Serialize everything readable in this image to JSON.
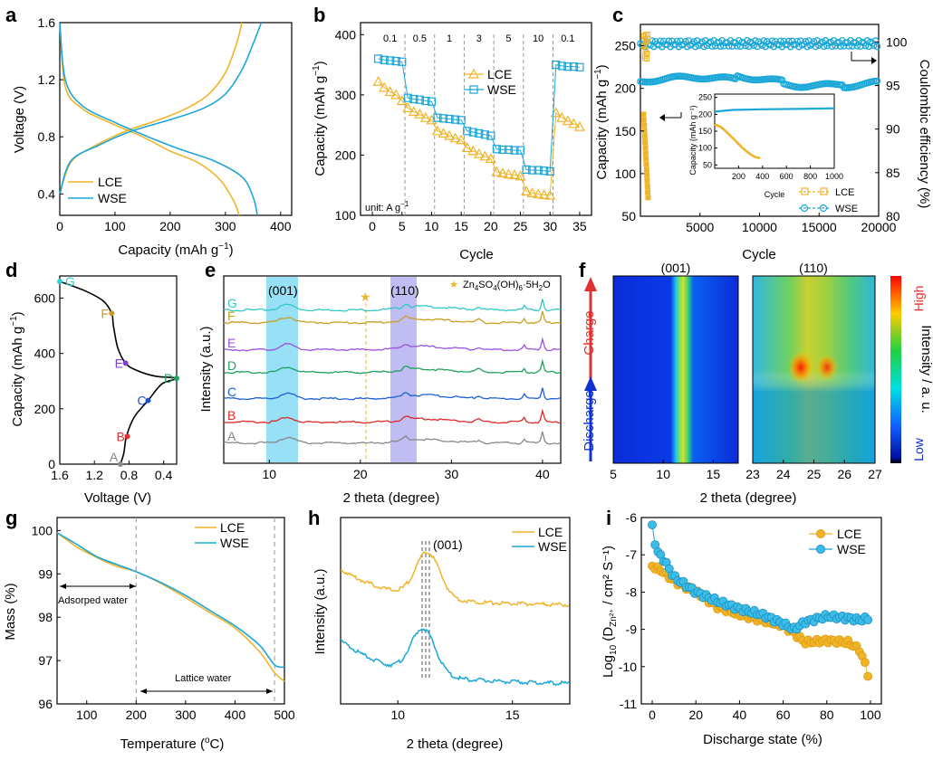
{
  "colors": {
    "lce": "#f0b429",
    "wse": "#1aa7d8",
    "cyan_band": "#5fd0f0",
    "purple_band": "#a9a7ee",
    "star": "#f0b429"
  },
  "panels": {
    "a": {
      "letter": "a",
      "xlabel": "Capacity (mAh g",
      "xlabel_sup": "−1",
      "xlabel_end": ")",
      "ylabel": "Voltage (V)",
      "xticks": [
        "0",
        "100",
        "200",
        "300",
        "400"
      ],
      "yticks": [
        "0.4",
        "0.8",
        "1.2",
        "1.6"
      ],
      "legend": [
        "LCE",
        "WSE"
      ]
    },
    "b": {
      "letter": "b",
      "xlabel": "Cycle",
      "ylabel": "Capacity (mAh g",
      "ylabel_sup": "−1",
      "ylabel_end": ")",
      "xticks": [
        "0",
        "5",
        "10",
        "15",
        "20",
        "25",
        "30",
        "35"
      ],
      "yticks": [
        "100",
        "200",
        "300",
        "400"
      ],
      "rates": [
        "0.1",
        "0.5",
        "1",
        "3",
        "5",
        "10",
        "0.1"
      ],
      "unit_note": "unit: A g",
      "unit_sup": "−1",
      "legend": [
        "LCE",
        "WSE"
      ]
    },
    "c": {
      "letter": "c",
      "xlabel": "Cycle",
      "ylabel": "Capacity (mAh g",
      "ylabel_sup": "−1",
      "ylabel_end": ")",
      "ylabel_right": "Coulombic efficiency (%)",
      "xticks": [
        "5000",
        "10000",
        "15000",
        "20000"
      ],
      "yticks": [
        "50",
        "100",
        "150",
        "200",
        "250"
      ],
      "yticks_right": [
        "80",
        "85",
        "90",
        "95",
        "100"
      ],
      "inset": {
        "xlabel": "Cycle",
        "ylabel": "Capacity (mAh g⁻¹)",
        "xticks": [
          "200",
          "400",
          "600",
          "800",
          "1000"
        ],
        "yticks": [
          "50",
          "100",
          "150",
          "200",
          "250"
        ]
      },
      "legend": [
        "LCE",
        "WSE"
      ]
    },
    "d": {
      "letter": "d",
      "xlabel": "Voltage (V)",
      "ylabel": "Capacity (mAh g",
      "ylabel_sup": "−1",
      "ylabel_end": ")",
      "xticks": [
        "1.6",
        "1.2",
        "0.8",
        "0.4"
      ],
      "yticks": [
        "0",
        "200",
        "400",
        "600"
      ],
      "points": [
        {
          "label": "A",
          "color": "#888888"
        },
        {
          "label": "B",
          "color": "#e03030"
        },
        {
          "label": "C",
          "color": "#2050d0"
        },
        {
          "label": "D",
          "color": "#20a060"
        },
        {
          "label": "E",
          "color": "#8040d0"
        },
        {
          "label": "F",
          "color": "#c89a20"
        },
        {
          "label": "G",
          "color": "#30d0d0"
        }
      ]
    },
    "e": {
      "letter": "e",
      "xlabel": "2 theta (degree)",
      "ylabel": "Intensity (a.u.)",
      "xticks": [
        "10",
        "20",
        "30",
        "40"
      ],
      "peak1": "(001)",
      "peak2": "(110)",
      "legend_text": "Zn",
      "legend_sub1": "4",
      "legend_mid": "SO",
      "legend_sub2": "4",
      "legend_mid2": "(OH)",
      "legend_sub3": "6",
      "legend_end": "·5H",
      "legend_sub4": "2",
      "legend_end2": "O",
      "curves": [
        {
          "label": "G",
          "color": "#30c8c8"
        },
        {
          "label": "F",
          "color": "#c8a020"
        },
        {
          "label": "E",
          "color": "#9b50e0"
        },
        {
          "label": "D",
          "color": "#20a060"
        },
        {
          "label": "C",
          "color": "#1e5fd8"
        },
        {
          "label": "B",
          "color": "#e02828"
        },
        {
          "label": "A",
          "color": "#888888"
        }
      ]
    },
    "f": {
      "letter": "f",
      "title1": "(001)",
      "title2": "(110)",
      "xticks1": [
        "5",
        "10",
        "15"
      ],
      "xticks2": [
        "23",
        "24",
        "25",
        "26",
        "27"
      ],
      "xlabel": "2 theta (degree)",
      "charge": "Charge",
      "discharge": "Discharge",
      "colorbar_label": "Intensity / a. u.",
      "high": "High",
      "low": "Low"
    },
    "g": {
      "letter": "g",
      "xlabel": "Temperature (",
      "xlabel_sup": "o",
      "xlabel_end": "C)",
      "ylabel": "Mass (%)",
      "xticks": [
        "100",
        "200",
        "300",
        "400",
        "500"
      ],
      "yticks": [
        "96",
        "97",
        "98",
        "99",
        "100"
      ],
      "adsorbed": "Adsorped water",
      "lattice": "Lattice water",
      "legend": [
        "LCE",
        "WSE"
      ]
    },
    "h": {
      "letter": "h",
      "xlabel": "2 theta (degree)",
      "ylabel": "Intensity (a.u.)",
      "xticks": [
        "10",
        "15"
      ],
      "peak": "(001)",
      "legend": [
        "LCE",
        "WSE"
      ]
    },
    "i": {
      "letter": "i",
      "xlabel": "Discharge state (%)",
      "ylabel_pre": "Log",
      "ylabel_sub": "10",
      "ylabel_mid": " (D",
      "ylabel_zn": "Zn²⁺",
      "ylabel_end": " / cm² S⁻¹)",
      "xticks": [
        "0",
        "20",
        "40",
        "60",
        "80",
        "100"
      ],
      "yticks": [
        "-11",
        "-10",
        "-9",
        "-8",
        "-7",
        "-6"
      ],
      "legend": [
        "LCE",
        "WSE"
      ]
    }
  },
  "chart_data": [
    {
      "type": "line",
      "panel": "a",
      "xlabel": "Capacity (mAh g−1)",
      "ylabel": "Voltage (V)",
      "xlim": [
        0,
        420
      ],
      "ylim": [
        0.25,
        1.6
      ],
      "series": [
        {
          "name": "LCE",
          "charge": [
            [
              0,
              0.4
            ],
            [
              20,
              0.62
            ],
            [
              60,
              0.73
            ],
            [
              120,
              0.84
            ],
            [
              180,
              0.92
            ],
            [
              230,
              1.0
            ],
            [
              270,
              1.1
            ],
            [
              300,
              1.25
            ],
            [
              320,
              1.45
            ],
            [
              330,
              1.6
            ]
          ],
          "discharge": [
            [
              0,
              1.6
            ],
            [
              10,
              1.15
            ],
            [
              40,
              1.0
            ],
            [
              90,
              0.9
            ],
            [
              150,
              0.8
            ],
            [
              200,
              0.7
            ],
            [
              250,
              0.62
            ],
            [
              290,
              0.5
            ],
            [
              315,
              0.35
            ],
            [
              325,
              0.25
            ]
          ]
        },
        {
          "name": "WSE",
          "charge": [
            [
              0,
              0.4
            ],
            [
              20,
              0.63
            ],
            [
              70,
              0.74
            ],
            [
              130,
              0.84
            ],
            [
              200,
              0.92
            ],
            [
              260,
              1.0
            ],
            [
              300,
              1.1
            ],
            [
              330,
              1.27
            ],
            [
              350,
              1.45
            ],
            [
              365,
              1.6
            ]
          ],
          "discharge": [
            [
              0,
              1.6
            ],
            [
              10,
              1.2
            ],
            [
              40,
              1.02
            ],
            [
              100,
              0.9
            ],
            [
              160,
              0.8
            ],
            [
              220,
              0.71
            ],
            [
              280,
              0.63
            ],
            [
              330,
              0.52
            ],
            [
              350,
              0.38
            ],
            [
              358,
              0.25
            ]
          ]
        }
      ]
    },
    {
      "type": "scatter",
      "panel": "b",
      "xlabel": "Cycle",
      "ylabel": "Capacity (mAh g−1)",
      "xlim": [
        -2,
        37
      ],
      "ylim": [
        100,
        420
      ],
      "series": [
        {
          "name": "LCE",
          "x": [
            1,
            2,
            3,
            4,
            5,
            6,
            7,
            8,
            9,
            10,
            11,
            12,
            13,
            14,
            15,
            16,
            17,
            18,
            19,
            20,
            21,
            22,
            23,
            24,
            25,
            26,
            27,
            28,
            29,
            30,
            31,
            32,
            33,
            34,
            35
          ],
          "values": [
            322,
            312,
            305,
            300,
            290,
            278,
            272,
            268,
            262,
            258,
            240,
            236,
            232,
            228,
            225,
            212,
            207,
            202,
            198,
            194,
            172,
            170,
            168,
            167,
            165,
            140,
            137,
            135,
            134,
            133,
            270,
            262,
            257,
            252,
            247
          ]
        },
        {
          "name": "WSE",
          "x": [
            1,
            2,
            3,
            4,
            5,
            6,
            7,
            8,
            9,
            10,
            11,
            12,
            13,
            14,
            15,
            16,
            17,
            18,
            19,
            20,
            21,
            22,
            23,
            24,
            25,
            26,
            27,
            28,
            29,
            30,
            31,
            32,
            33,
            34,
            35
          ],
          "values": [
            360,
            358,
            357,
            356,
            355,
            295,
            293,
            292,
            290,
            289,
            262,
            261,
            260,
            259,
            258,
            240,
            238,
            236,
            234,
            232,
            210,
            209,
            209,
            208,
            208,
            176,
            175,
            175,
            174,
            173,
            350,
            348,
            347,
            347,
            346
          ]
        }
      ]
    },
    {
      "type": "line",
      "panel": "c",
      "xlabel": "Cycle",
      "ylabel": "Capacity (mAh g−1)",
      "xlim": [
        0,
        20000
      ],
      "ylim": [
        50,
        275
      ],
      "series": [
        {
          "name": "LCE",
          "x": [
            1,
            100,
            200,
            300,
            400
          ],
          "values": [
            170,
            140,
            110,
            85,
            70
          ]
        },
        {
          "name": "WSE",
          "x": [
            1,
            2000,
            5000,
            8000,
            10000,
            13000,
            16000,
            20000
          ],
          "values": [
            208,
            205,
            209,
            212,
            215,
            212,
            210,
            206
          ]
        }
      ],
      "coulombic_efficiency_ylim": [
        80,
        102
      ],
      "coulombic_efficiency": {
        "LCE": 99.5,
        "WSE": 99.8
      }
    },
    {
      "type": "line",
      "panel": "d",
      "xlabel": "Voltage (V)",
      "ylabel": "Capacity (mAh g−1)",
      "xlim": [
        1.6,
        0.25
      ],
      "ylim": [
        0,
        680
      ],
      "points": [
        {
          "label": "A",
          "x": 0.9,
          "y": 0
        },
        {
          "label": "B",
          "x": 0.82,
          "y": 100
        },
        {
          "label": "C",
          "x": 0.58,
          "y": 230
        },
        {
          "label": "D",
          "x": 0.25,
          "y": 310
        },
        {
          "label": "E",
          "x": 0.84,
          "y": 365
        },
        {
          "label": "F",
          "x": 1.0,
          "y": 545
        },
        {
          "label": "G",
          "x": 1.6,
          "y": 660
        }
      ]
    },
    {
      "type": "line",
      "panel": "e",
      "xlabel": "2 theta (degree)",
      "ylabel": "Intensity (a.u.)",
      "xlim": [
        5,
        42
      ],
      "peaks": {
        "001": [
          10,
          13.5
        ],
        "110": [
          23.5,
          26.5
        ],
        "Zn4SO4(OH)6·5H2O": 21
      }
    },
    {
      "type": "heatmap",
      "panel": "f",
      "xlim_left": [
        5,
        17
      ],
      "xlim_right": [
        23,
        27
      ]
    },
    {
      "type": "line",
      "panel": "g",
      "xlabel": "Temperature (oC)",
      "ylabel": "Mass (%)",
      "xlim": [
        40,
        500
      ],
      "ylim": [
        96.0,
        100.3
      ],
      "series": [
        {
          "name": "LCE",
          "x": [
            40,
            80,
            120,
            160,
            200,
            250,
            300,
            350,
            400,
            450,
            480,
            500
          ],
          "values": [
            99.95,
            99.62,
            99.38,
            99.18,
            99.05,
            98.78,
            98.45,
            98.1,
            97.75,
            97.2,
            96.72,
            96.52
          ]
        },
        {
          "name": "WSE",
          "x": [
            40,
            80,
            120,
            160,
            200,
            250,
            300,
            350,
            400,
            450,
            480,
            500
          ],
          "values": [
            99.95,
            99.68,
            99.4,
            99.22,
            99.05,
            98.8,
            98.5,
            98.15,
            97.8,
            97.35,
            96.9,
            96.85
          ]
        }
      ]
    },
    {
      "type": "line",
      "panel": "h",
      "xlabel": "2 theta (degree)",
      "ylabel": "Intensity (a.u.)",
      "xlim": [
        7.5,
        17.5
      ],
      "series": [
        {
          "name": "LCE",
          "peak": 11.3
        },
        {
          "name": "WSE",
          "peak": 11.1
        }
      ]
    },
    {
      "type": "scatter",
      "panel": "i",
      "xlabel": "Discharge state (%)",
      "ylabel": "Log10 (DZn2+ / cm2 S-1)",
      "xlim": [
        -5,
        105
      ],
      "ylim": [
        -11,
        -6
      ],
      "series": [
        {
          "name": "LCE",
          "x": [
            0,
            5,
            10,
            20,
            30,
            40,
            50,
            60,
            65,
            70,
            80,
            90,
            95,
            98,
            100
          ],
          "values": [
            -7.3,
            -7.45,
            -7.7,
            -8.0,
            -8.4,
            -8.6,
            -8.75,
            -8.9,
            -9.1,
            -9.35,
            -9.3,
            -9.35,
            -9.55,
            -10.0,
            -10.5
          ]
        },
        {
          "name": "WSE",
          "x": [
            0,
            2,
            5,
            10,
            20,
            30,
            40,
            50,
            60,
            65,
            70,
            80,
            90,
            95,
            100
          ],
          "values": [
            -6.25,
            -6.9,
            -7.1,
            -7.6,
            -8.0,
            -8.25,
            -8.45,
            -8.6,
            -8.85,
            -9.0,
            -8.8,
            -8.65,
            -8.7,
            -8.75,
            -8.7
          ]
        }
      ]
    }
  ]
}
